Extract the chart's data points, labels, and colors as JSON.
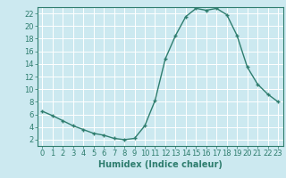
{
  "x": [
    0,
    1,
    2,
    3,
    4,
    5,
    6,
    7,
    8,
    9,
    10,
    11,
    12,
    13,
    14,
    15,
    16,
    17,
    18,
    19,
    20,
    21,
    22,
    23
  ],
  "y": [
    6.5,
    5.8,
    5.0,
    4.2,
    3.6,
    3.0,
    2.7,
    2.2,
    2.0,
    2.2,
    4.2,
    8.2,
    14.8,
    18.5,
    21.5,
    22.8,
    22.5,
    22.8,
    21.8,
    18.5,
    13.5,
    10.8,
    9.2,
    8.0
  ],
  "line_color": "#2e7d6e",
  "marker": "+",
  "marker_size": 3,
  "line_width": 1.0,
  "background_color": "#cce9f0",
  "grid_color": "#ffffff",
  "xlabel": "Humidex (Indice chaleur)",
  "xlim": [
    -0.5,
    23.5
  ],
  "ylim": [
    1,
    23
  ],
  "yticks": [
    2,
    4,
    6,
    8,
    10,
    12,
    14,
    16,
    18,
    20,
    22
  ],
  "xticks": [
    0,
    1,
    2,
    3,
    4,
    5,
    6,
    7,
    8,
    9,
    10,
    11,
    12,
    13,
    14,
    15,
    16,
    17,
    18,
    19,
    20,
    21,
    22,
    23
  ],
  "tick_color": "#2e7d6e",
  "label_color": "#2e7d6e",
  "xlabel_fontsize": 7,
  "tick_fontsize": 6
}
